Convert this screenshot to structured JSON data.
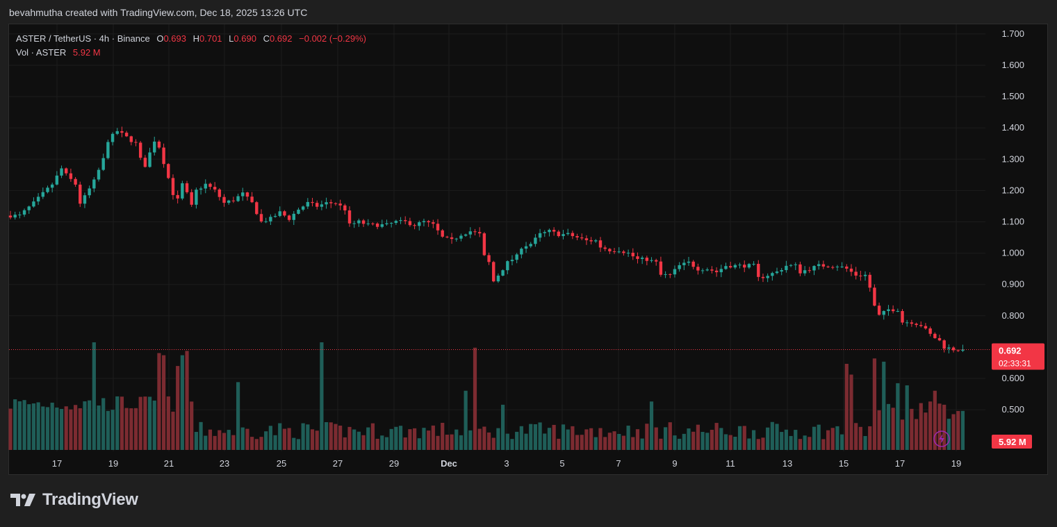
{
  "header": {
    "caption": "bevahmutha created with TradingView.com, Dec 18, 2025 13:26 UTC"
  },
  "legend": {
    "symbol": "ASTER / TetherUS · 4h · Binance",
    "open_label": "O",
    "open": "0.693",
    "high_label": "H",
    "high": "0.701",
    "low_label": "L",
    "low": "0.690",
    "close_label": "C",
    "close": "0.692",
    "change": "−0.002 (−0.29%)",
    "vol_label": "Vol · ASTER",
    "vol_value": "5.92 M"
  },
  "price_badge": {
    "price": "0.692",
    "countdown": "02:33:31"
  },
  "volume_badge": "5.92 M",
  "brand": "TradingView",
  "colors": {
    "up": "#26a69a",
    "down": "#f23645",
    "vol_up": "#1f5e58",
    "vol_down": "#7c2b31",
    "background": "#0f0f0f",
    "grid": "#1c1c1c",
    "text": "#d1d4dc"
  },
  "icons": {
    "lightning": "lightning-icon",
    "logo": "tradingview-logo-icon"
  },
  "chart_data": {
    "type": "candlestick",
    "symbol": "ASTER / TetherUS",
    "interval": "4h",
    "exchange": "Binance",
    "y_axis": {
      "ticks": [
        "1.700",
        "1.600",
        "1.500",
        "1.400",
        "1.300",
        "1.200",
        "1.100",
        "1.000",
        "0.900",
        "0.800",
        "0.600",
        "0.500"
      ],
      "range": [
        0.45,
        1.72
      ]
    },
    "x_axis": {
      "ticks": [
        "17",
        "19",
        "21",
        "23",
        "25",
        "27",
        "29",
        "Dec",
        "3",
        "5",
        "7",
        "9",
        "11",
        "13",
        "15",
        "17",
        "19"
      ]
    },
    "current_price": 0.692,
    "price_path": [
      [
        0,
        1.12
      ],
      [
        3,
        1.12
      ],
      [
        6,
        1.16
      ],
      [
        8,
        1.19
      ],
      [
        10,
        1.22
      ],
      [
        12,
        1.27
      ],
      [
        13,
        1.25
      ],
      [
        15,
        1.22
      ],
      [
        16,
        1.16
      ],
      [
        17,
        1.18
      ],
      [
        19,
        1.23
      ],
      [
        21,
        1.3
      ],
      [
        22,
        1.36
      ],
      [
        24,
        1.39
      ],
      [
        26,
        1.37
      ],
      [
        28,
        1.35
      ],
      [
        29,
        1.3
      ],
      [
        30,
        1.28
      ],
      [
        31,
        1.32
      ],
      [
        32,
        1.36
      ],
      [
        33,
        1.34
      ],
      [
        35,
        1.24
      ],
      [
        36,
        1.19
      ],
      [
        37,
        1.17
      ],
      [
        38,
        1.22
      ],
      [
        39,
        1.19
      ],
      [
        40,
        1.15
      ],
      [
        41,
        1.2
      ],
      [
        43,
        1.22
      ],
      [
        45,
        1.2
      ],
      [
        47,
        1.16
      ],
      [
        49,
        1.17
      ],
      [
        51,
        1.19
      ],
      [
        53,
        1.16
      ],
      [
        55,
        1.1
      ],
      [
        57,
        1.11
      ],
      [
        59,
        1.13
      ],
      [
        61,
        1.11
      ],
      [
        63,
        1.14
      ],
      [
        65,
        1.16
      ],
      [
        67,
        1.15
      ],
      [
        69,
        1.16
      ],
      [
        71,
        1.16
      ],
      [
        73,
        1.14
      ],
      [
        74,
        1.09
      ],
      [
        76,
        1.1
      ],
      [
        78,
        1.09
      ],
      [
        80,
        1.09
      ],
      [
        82,
        1.09
      ],
      [
        84,
        1.1
      ],
      [
        86,
        1.1
      ],
      [
        88,
        1.09
      ],
      [
        90,
        1.1
      ],
      [
        92,
        1.09
      ],
      [
        94,
        1.05
      ],
      [
        96,
        1.04
      ],
      [
        98,
        1.06
      ],
      [
        100,
        1.07
      ],
      [
        102,
        1.06
      ],
      [
        103,
        0.99
      ],
      [
        104,
        0.97
      ],
      [
        105,
        0.91
      ],
      [
        106,
        0.93
      ],
      [
        108,
        0.97
      ],
      [
        110,
        0.99
      ],
      [
        111,
        1.02
      ],
      [
        113,
        1.03
      ],
      [
        115,
        1.06
      ],
      [
        117,
        1.07
      ],
      [
        119,
        1.06
      ],
      [
        121,
        1.06
      ],
      [
        123,
        1.05
      ],
      [
        125,
        1.04
      ],
      [
        127,
        1.04
      ],
      [
        128,
        1.02
      ],
      [
        130,
        1.01
      ],
      [
        132,
        1.01
      ],
      [
        134,
        1.0
      ],
      [
        136,
        0.98
      ],
      [
        138,
        0.98
      ],
      [
        140,
        0.97
      ],
      [
        141,
        0.93
      ],
      [
        143,
        0.93
      ],
      [
        145,
        0.96
      ],
      [
        147,
        0.97
      ],
      [
        149,
        0.95
      ],
      [
        151,
        0.95
      ],
      [
        153,
        0.94
      ],
      [
        155,
        0.96
      ],
      [
        157,
        0.96
      ],
      [
        159,
        0.96
      ],
      [
        161,
        0.96
      ],
      [
        162,
        0.92
      ],
      [
        164,
        0.93
      ],
      [
        166,
        0.94
      ],
      [
        168,
        0.96
      ],
      [
        170,
        0.96
      ],
      [
        171,
        0.94
      ],
      [
        173,
        0.95
      ],
      [
        175,
        0.96
      ],
      [
        177,
        0.96
      ],
      [
        179,
        0.96
      ],
      [
        181,
        0.95
      ],
      [
        183,
        0.93
      ],
      [
        185,
        0.93
      ],
      [
        186,
        0.89
      ],
      [
        187,
        0.83
      ],
      [
        188,
        0.8
      ],
      [
        190,
        0.82
      ],
      [
        192,
        0.82
      ],
      [
        193,
        0.78
      ],
      [
        195,
        0.78
      ],
      [
        197,
        0.77
      ],
      [
        199,
        0.74
      ],
      [
        201,
        0.72
      ],
      [
        202,
        0.7
      ],
      [
        204,
        0.693
      ],
      [
        205,
        0.692
      ]
    ],
    "volume_spikes": [
      [
        18,
        1.0
      ],
      [
        32,
        0.9
      ],
      [
        33,
        0.88
      ],
      [
        36,
        0.78
      ],
      [
        37,
        0.88
      ],
      [
        38,
        0.92
      ],
      [
        49,
        0.63
      ],
      [
        67,
        1.0
      ],
      [
        98,
        0.55
      ],
      [
        100,
        0.95
      ],
      [
        106,
        0.42
      ],
      [
        138,
        0.45
      ],
      [
        180,
        0.8
      ],
      [
        181,
        0.7
      ],
      [
        186,
        0.85
      ],
      [
        188,
        0.82
      ],
      [
        191,
        0.62
      ],
      [
        193,
        0.6
      ],
      [
        198,
        0.45
      ],
      [
        199,
        0.55
      ],
      [
        201,
        0.42
      ]
    ]
  }
}
